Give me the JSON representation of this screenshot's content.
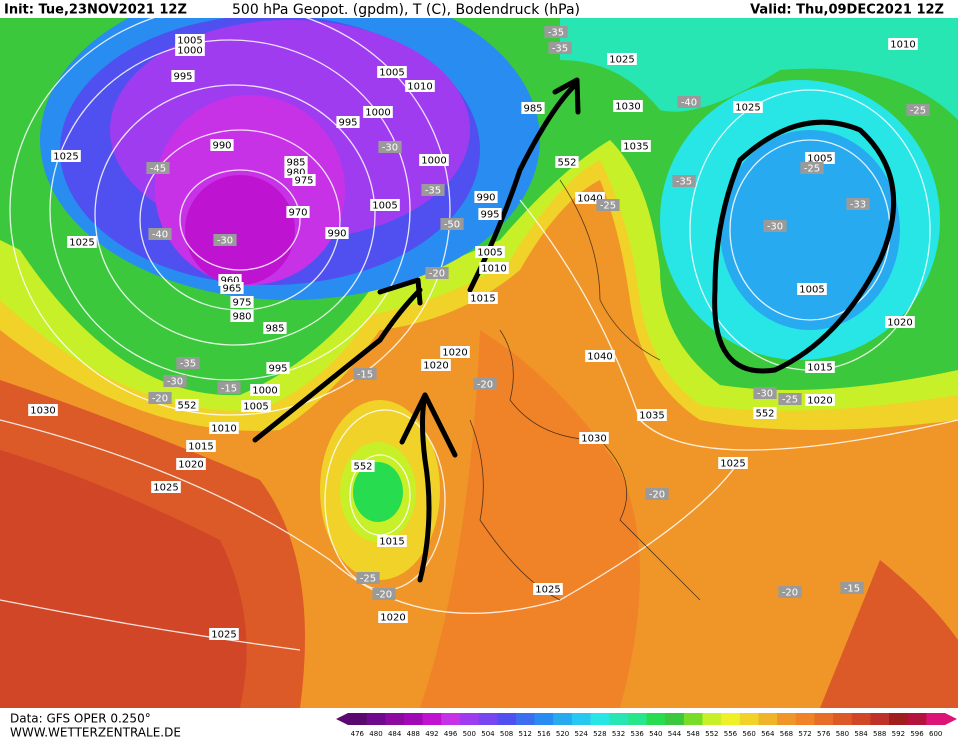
{
  "header": {
    "init": "Init: Tue,23NOV2021 12Z",
    "title": "500 hPa Geopot. (gpdm), T (C), Bodendruck (hPa)",
    "valid": "Valid: Thu,09DEC2021 12Z"
  },
  "footer": {
    "data": "Data: GFS OPER 0.250°",
    "site": "WWW.WETTERZENTRALE.DE"
  },
  "colorbar": {
    "labels": [
      476,
      480,
      484,
      488,
      492,
      496,
      500,
      504,
      508,
      512,
      516,
      520,
      524,
      528,
      532,
      536,
      540,
      544,
      548,
      552,
      556,
      560,
      564,
      568,
      572,
      576,
      580,
      584,
      588,
      592,
      596,
      600
    ],
    "colors": [
      "#5a0a6e",
      "#6e0a8c",
      "#8c0aa0",
      "#a00ab4",
      "#be14d2",
      "#c832e6",
      "#a03cf0",
      "#7846f0",
      "#5050f0",
      "#3c6ef0",
      "#288cf0",
      "#28aaf0",
      "#28c8f0",
      "#28e6e6",
      "#28e6b4",
      "#28e68c",
      "#28dc50",
      "#3cc83c",
      "#78dc28",
      "#c8f028",
      "#f0f028",
      "#f0d228",
      "#f0b428",
      "#f09628",
      "#f08228",
      "#e66e28",
      "#dc5a28",
      "#d24628",
      "#be3228",
      "#a01e1e",
      "#b4143c",
      "#dc1478"
    ]
  },
  "map": {
    "pressure_labels": [
      "1005",
      "1000",
      "995",
      "990",
      "985",
      "980",
      "975",
      "970",
      "960",
      "965",
      "975",
      "980",
      "985",
      "995",
      "1000",
      "1005",
      "1010",
      "1015",
      "1020",
      "1025",
      "1030",
      "1025",
      "1025",
      "1005",
      "1010",
      "1000",
      "995",
      "1000",
      "1005",
      "990",
      "990",
      "995",
      "1005",
      "1010",
      "1015",
      "1020",
      "1020",
      "985",
      "1025",
      "1030",
      "1035",
      "1040",
      "1040",
      "1035",
      "1030",
      "1025",
      "1025",
      "1005",
      "1005",
      "1015",
      "1020",
      "1020",
      "1010",
      "1015",
      "1020",
      "1025",
      "1025"
    ],
    "temperature_labels": [
      "-45",
      "-40",
      "-30",
      "-35",
      "-30",
      "-20",
      "-15",
      "-15",
      "-20",
      "-50",
      "-20",
      "-35",
      "-30",
      "-35",
      "-35",
      "-40",
      "-35",
      "-25",
      "-33",
      "-30",
      "-25",
      "-30",
      "-25",
      "-20",
      "-20",
      "-15",
      "-25",
      "-20",
      "-25"
    ],
    "geopotential_labels": [
      "552",
      "552",
      "552",
      "552"
    ]
  }
}
